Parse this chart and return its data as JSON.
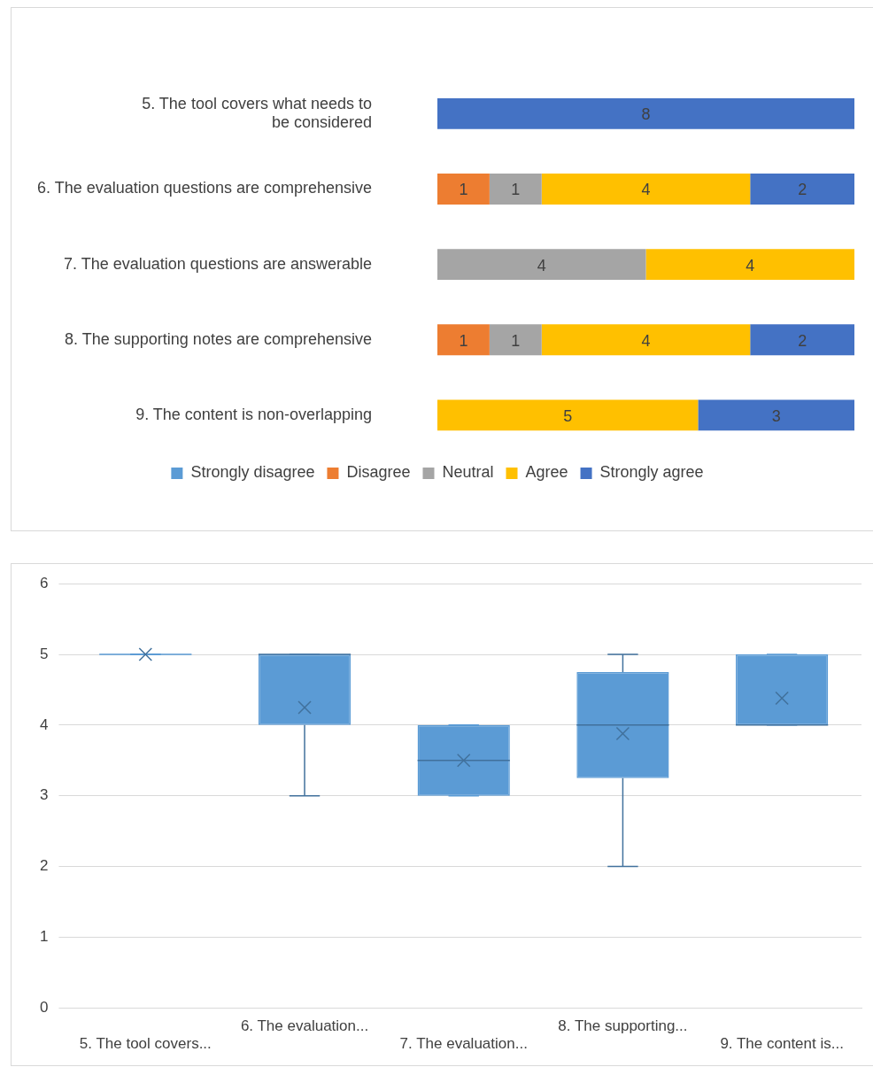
{
  "chart_data": [
    {
      "type": "bar",
      "orientation": "horizontal",
      "stacked": true,
      "data_labels": true,
      "legend": "bottom",
      "tick_labels": "y",
      "grid": false,
      "categories": [
        "5. The tool covers what needs to be considered",
        "6. The evaluation questions are comprehensive",
        "7. The evaluation questions are answerable",
        "8. The supporting notes are comprehensive",
        "9. The content is non-overlapping"
      ],
      "series": [
        {
          "name": "Strongly disagree",
          "color": "#5b9bd5",
          "values": [
            null,
            null,
            null,
            null,
            null
          ]
        },
        {
          "name": "Disagree",
          "color": "#ed7d31",
          "values": [
            null,
            1,
            null,
            1,
            null
          ]
        },
        {
          "name": "Neutral",
          "color": "#a5a5a5",
          "values": [
            null,
            1,
            4,
            1,
            null
          ]
        },
        {
          "name": "Agree",
          "color": "#ffc000",
          "values": [
            null,
            4,
            4,
            4,
            5
          ]
        },
        {
          "name": "Strongly agree",
          "color": "#4472c4",
          "values": [
            8,
            2,
            null,
            2,
            3
          ]
        }
      ]
    },
    {
      "type": "box",
      "color": "#5b9bd5",
      "grid": "y",
      "ylim": [
        0,
        6
      ],
      "yticks": [
        0,
        1,
        2,
        3,
        4,
        5,
        6
      ],
      "categories": [
        "5. The tool covers...",
        "6. The evaluation...",
        "7. The evaluation...",
        "8. The supporting...",
        "9. The content is..."
      ],
      "boxes": [
        {
          "low": 5,
          "q1": 5,
          "median": 5,
          "q3": 5,
          "high": 5,
          "mean": 5
        },
        {
          "low": 3,
          "q1": 4,
          "median": 5,
          "q3": 5,
          "high": 5,
          "mean": 4.25
        },
        {
          "low": 3,
          "q1": 3,
          "median": 3.5,
          "q3": 4,
          "high": 4,
          "mean": 3.5
        },
        {
          "low": 2,
          "q1": 3.25,
          "median": 4,
          "q3": 4.75,
          "high": 5,
          "mean": 3.88
        },
        {
          "low": 4,
          "q1": 4,
          "median": 4,
          "q3": 5,
          "high": 5,
          "mean": 4.38
        }
      ]
    }
  ]
}
